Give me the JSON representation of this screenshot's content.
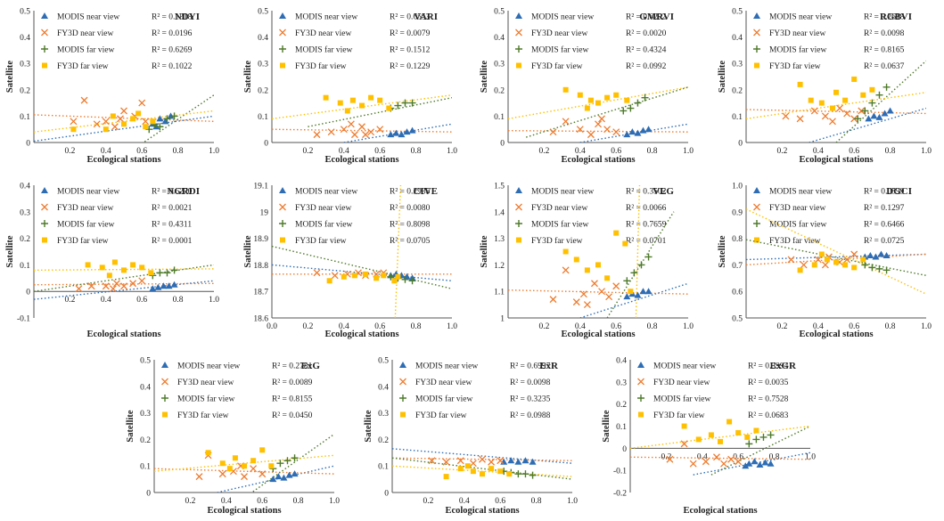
{
  "colors": {
    "modis_near": "#2E6DB4",
    "fy3d_near": "#ED7D31",
    "modis_far": "#4E7A2A",
    "fy3d_far": "#FFC000"
  },
  "legend_labels": [
    "MODIS near view",
    "FY3D near view",
    "MODIS far view",
    "FY3D far view"
  ],
  "chart_data": [
    {
      "type": "scatter",
      "title": "NDYI",
      "xlabel": "Ecological stations",
      "ylabel": "Satellite",
      "xlim": [
        0,
        1
      ],
      "ylim": [
        0,
        0.5
      ],
      "xticks": [
        "0.2",
        "0.4",
        "0.6",
        "0.8",
        "1.0"
      ],
      "yticks": [
        "0",
        "0.1",
        "0.2",
        "0.3",
        "0.4",
        "0.5"
      ],
      "r2": [
        "R² = 0.1318",
        "R² = 0.0196",
        "R² = 0.6269",
        "R² = 0.1022"
      ]
    },
    {
      "type": "scatter",
      "title": "VARI",
      "xlabel": "Ecological stations",
      "ylabel": "Satellite",
      "xlim": [
        0,
        1
      ],
      "ylim": [
        0,
        0.5
      ],
      "xticks": [
        "0.2",
        "0.4",
        "0.6",
        "0.8",
        "1.0"
      ],
      "yticks": [
        "0",
        "0.1",
        "0.2",
        "0.3",
        "0.4",
        "0.5"
      ],
      "r2": [
        "R² = 0.6553",
        "R² = 0.0079",
        "R² = 0.1512",
        "R² = 0.1229"
      ]
    },
    {
      "type": "scatter",
      "title": "GMRVI",
      "xlabel": "Ecological stations",
      "ylabel": "Satellite",
      "xlim": [
        0,
        1
      ],
      "ylim": [
        0,
        0.5
      ],
      "xticks": [
        "0.2",
        "0.4",
        "0.6",
        "0.8",
        "1.0"
      ],
      "yticks": [
        "0",
        "0.1",
        "0.2",
        "0.3",
        "0.4",
        "0.5"
      ],
      "r2": [
        "R² = 0.6292",
        "R² = 0.0020",
        "R² = 0.4324",
        "R² = 0.0992"
      ]
    },
    {
      "type": "scatter",
      "title": "RGBVI",
      "xlabel": "Ecological stations",
      "ylabel": "Satellite",
      "xlim": [
        0,
        1
      ],
      "ylim": [
        0,
        0.5
      ],
      "xticks": [
        "0.2",
        "0.4",
        "0.6",
        "0.8",
        "1.0"
      ],
      "yticks": [
        "0",
        "0.1",
        "0.2",
        "0.3",
        "0.4",
        "0.5"
      ],
      "r2": [
        "R² = 0.2618",
        "R² = 0.0098",
        "R² = 0.8165",
        "R² = 0.0637"
      ]
    },
    {
      "type": "scatter",
      "title": "NGRDI",
      "xlabel": "Ecological stations",
      "ylabel": "Satellite",
      "xlim": [
        0,
        1
      ],
      "ylim": [
        -0.1,
        0.4
      ],
      "xticks": [
        "0.2",
        "0.4",
        "0.6",
        "0.8",
        "1.0"
      ],
      "yticks": [
        "-0.1",
        "0",
        "0.1",
        "0.2",
        "0.3",
        "0.4"
      ],
      "r2": [
        "R² = 0.6270",
        "R² = 0.0021",
        "R² = 0.4311",
        "R² = 0.0001"
      ]
    },
    {
      "type": "scatter",
      "title": "CIVE",
      "xlabel": "Ecological stations",
      "ylabel": "Satellite",
      "xlim": [
        0,
        1
      ],
      "ylim": [
        18.6,
        19.1
      ],
      "xticks": [
        "0.0",
        "0.2",
        "0.4",
        "0.6",
        "0.8",
        "1.0"
      ],
      "yticks": [
        "18.6",
        "18.7",
        "18.8",
        "18.9",
        "19",
        "19.1"
      ],
      "r2": [
        "R² = 0.2935",
        "R² = 0.0080",
        "R² = 0.8098",
        "R² = 0.0705"
      ]
    },
    {
      "type": "scatter",
      "title": "VEG",
      "xlabel": "Ecological stations",
      "ylabel": "Satellite",
      "xlim": [
        0,
        1
      ],
      "ylim": [
        1,
        1.5
      ],
      "xticks": [
        "0.2",
        "0.4",
        "0.6",
        "0.8",
        "1.0"
      ],
      "yticks": [
        "1",
        "1.1",
        "1.2",
        "1.3",
        "1.4",
        "1.5"
      ],
      "r2": [
        "R² = 0.3502",
        "R² = 0.0066",
        "R² = 0.7659",
        "R² = 0.0701"
      ]
    },
    {
      "type": "scatter",
      "title": "DGCI",
      "xlabel": "Ecological stations",
      "ylabel": "Satellite",
      "xlim": [
        0,
        1
      ],
      "ylim": [
        0.5,
        1.0
      ],
      "xticks": [
        "0.2",
        "0.4",
        "0.6",
        "0.8",
        "1.0"
      ],
      "yticks": [
        "0.5",
        "0.6",
        "0.7",
        "0.8",
        "0.9",
        "1.0"
      ],
      "r2": [
        "R² = 0.0599",
        "R² = 0.1297",
        "R² = 0.6466",
        "R² = 0.0725"
      ]
    },
    {
      "type": "scatter",
      "title": "ExG",
      "xlabel": "Ecological stations",
      "ylabel": "Satellite",
      "xlim": [
        0,
        1
      ],
      "ylim": [
        0,
        0.5
      ],
      "xticks": [
        "0.2",
        "0.4",
        "0.6",
        "0.8",
        "1.0"
      ],
      "yticks": [
        "0",
        "0.1",
        "0.2",
        "0.3",
        "0.4",
        "0.5"
      ],
      "r2": [
        "R² = 0.2781",
        "R² = 0.0089",
        "R² = 0.8155",
        "R² = 0.0450"
      ]
    },
    {
      "type": "scatter",
      "title": "ExR",
      "xlabel": "Ecological stations",
      "ylabel": "Satellite",
      "xlim": [
        0,
        1
      ],
      "ylim": [
        0,
        0.5
      ],
      "xticks": [
        "0.2",
        "0.4",
        "0.6",
        "0.8",
        "1.0"
      ],
      "yticks": [
        "0",
        "0.1",
        "0.2",
        "0.3",
        "0.4",
        "0.5"
      ],
      "r2": [
        "R² = 0.6997",
        "R² = 0.0098",
        "R² = 0.3235",
        "R² = 0.0988"
      ]
    },
    {
      "type": "scatter",
      "title": "ExGR",
      "xlabel": "Ecological stations",
      "ylabel": "Satellite",
      "xlim": [
        0,
        1
      ],
      "ylim": [
        -0.2,
        0.4
      ],
      "xticks": [
        "0.2",
        "0.4",
        "0.6",
        "0.8",
        "1.0"
      ],
      "yticks": [
        "-0.2",
        "-0.1",
        "0",
        "0.1",
        "0.2",
        "0.3",
        "0.4"
      ],
      "r2": [
        "R² = 0.3994",
        "R² = 0.0035",
        "R² = 0.7528",
        "R² = 0.0683"
      ]
    }
  ]
}
